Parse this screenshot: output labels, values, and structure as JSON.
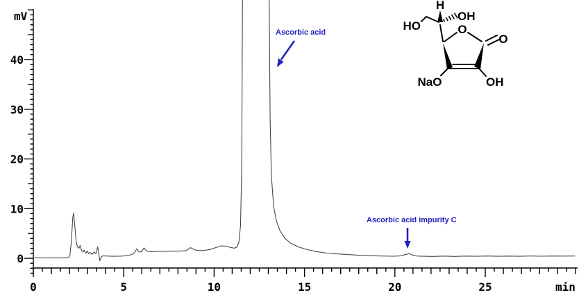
{
  "figure": {
    "background": "#ffffff",
    "axis_color": "#000000",
    "trace_color": "#454545",
    "annotation_color": "#2222bb",
    "structure_color": "#000000"
  },
  "chart_data": {
    "type": "line",
    "description": "HPLC chromatogram trace with detector signal in mV versus retention time in minutes",
    "xlabel": "min",
    "ylabel": "mV",
    "xlim": [
      0,
      30.2
    ],
    "ylim": [
      -3,
      50.5
    ],
    "grid": false,
    "x_major_ticks": [
      0,
      5,
      10,
      15,
      20,
      25
    ],
    "x_mid_tick_step": 1,
    "x_minor_tick_step": 0.5,
    "x_tick_end": 30,
    "y_major_ticks": [
      0,
      10,
      20,
      30,
      40
    ],
    "y_mid_tick_step": 5,
    "y_minor_tick_step": 1,
    "y_tick_range": [
      -3,
      50
    ],
    "annotations": [
      {
        "label": "Ascorbic acid",
        "peak_retention_min": 12.3,
        "peak_clipped_offscale": true
      },
      {
        "label": "Ascorbic acid impurity C",
        "peak_retention_min": 20.8
      }
    ],
    "series": [
      {
        "name": "detector signal",
        "points": [
          [
            0,
            0.1
          ],
          [
            0.5,
            0.08
          ],
          [
            1.0,
            0.1
          ],
          [
            1.5,
            0.08
          ],
          [
            1.92,
            0.12
          ],
          [
            2.02,
            0.5
          ],
          [
            2.1,
            3.2
          ],
          [
            2.18,
            8.2
          ],
          [
            2.23,
            9.1
          ],
          [
            2.3,
            6.2
          ],
          [
            2.37,
            3.4
          ],
          [
            2.44,
            2.3
          ],
          [
            2.52,
            2.0
          ],
          [
            2.59,
            2.6
          ],
          [
            2.67,
            1.6
          ],
          [
            2.75,
            1.25
          ],
          [
            2.82,
            1.65
          ],
          [
            2.9,
            1.0
          ],
          [
            2.98,
            1.45
          ],
          [
            3.07,
            0.9
          ],
          [
            3.16,
            1.15
          ],
          [
            3.26,
            0.8
          ],
          [
            3.36,
            1.3
          ],
          [
            3.46,
            0.9
          ],
          [
            3.56,
            2.3
          ],
          [
            3.62,
            0.9
          ],
          [
            3.68,
            -0.5
          ],
          [
            3.76,
            0.25
          ],
          [
            3.84,
            0.5
          ],
          [
            4.1,
            0.45
          ],
          [
            4.5,
            0.4
          ],
          [
            4.9,
            0.45
          ],
          [
            5.2,
            0.55
          ],
          [
            5.45,
            0.75
          ],
          [
            5.58,
            1.05
          ],
          [
            5.72,
            1.9
          ],
          [
            5.84,
            1.3
          ],
          [
            5.98,
            1.3
          ],
          [
            6.12,
            2.1
          ],
          [
            6.26,
            1.45
          ],
          [
            6.5,
            1.35
          ],
          [
            6.9,
            1.4
          ],
          [
            7.3,
            1.4
          ],
          [
            7.7,
            1.42
          ],
          [
            8.1,
            1.45
          ],
          [
            8.45,
            1.55
          ],
          [
            8.7,
            2.15
          ],
          [
            8.92,
            1.7
          ],
          [
            9.2,
            1.55
          ],
          [
            9.5,
            1.6
          ],
          [
            9.8,
            1.8
          ],
          [
            10.08,
            2.15
          ],
          [
            10.38,
            2.5
          ],
          [
            10.68,
            2.45
          ],
          [
            10.92,
            2.15
          ],
          [
            11.12,
            2.05
          ],
          [
            11.26,
            2.25
          ],
          [
            11.37,
            3.2
          ],
          [
            11.46,
            6.5
          ],
          [
            11.53,
            18
          ],
          [
            11.58,
            60
          ],
          [
            11.62,
            520
          ],
          [
            12.97,
            520
          ],
          [
            13.03,
            60
          ],
          [
            13.1,
            28
          ],
          [
            13.17,
            16.5
          ],
          [
            13.3,
            10.3
          ],
          [
            13.45,
            7.5
          ],
          [
            13.65,
            5.5
          ],
          [
            13.92,
            4.0
          ],
          [
            14.25,
            3.0
          ],
          [
            14.7,
            2.25
          ],
          [
            15.15,
            1.75
          ],
          [
            15.65,
            1.35
          ],
          [
            16.25,
            1.05
          ],
          [
            17.0,
            0.85
          ],
          [
            18.0,
            0.62
          ],
          [
            19.0,
            0.48
          ],
          [
            19.9,
            0.42
          ],
          [
            20.3,
            0.48
          ],
          [
            20.55,
            0.72
          ],
          [
            20.8,
            0.95
          ],
          [
            21.02,
            0.6
          ],
          [
            21.25,
            0.45
          ],
          [
            21.6,
            0.4
          ],
          [
            22.1,
            0.38
          ],
          [
            22.7,
            0.44
          ],
          [
            23.3,
            0.38
          ],
          [
            23.9,
            0.45
          ],
          [
            24.5,
            0.4
          ],
          [
            25.1,
            0.46
          ],
          [
            25.7,
            0.4
          ],
          [
            26.3,
            0.45
          ],
          [
            26.9,
            0.4
          ],
          [
            27.5,
            0.46
          ],
          [
            28.1,
            0.42
          ],
          [
            28.7,
            0.46
          ],
          [
            29.3,
            0.44
          ],
          [
            29.95,
            0.46
          ]
        ]
      }
    ]
  },
  "molecule": {
    "atom_labels": {
      "h": "H",
      "oh_top": "OH",
      "ho_left": "HO",
      "o_ring": "O",
      "o_carbonyl": "O",
      "nao": "NaO",
      "oh_bottom": "OH"
    }
  }
}
